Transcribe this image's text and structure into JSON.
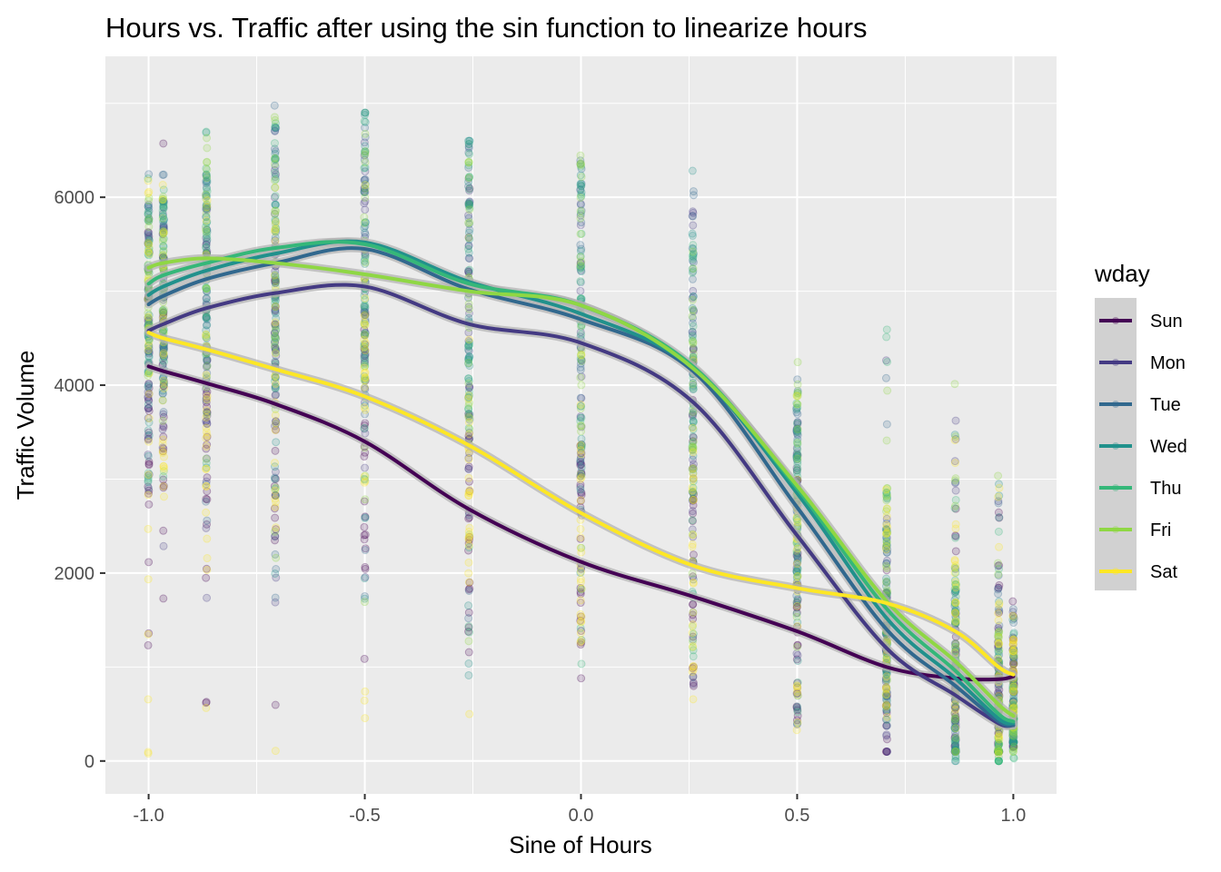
{
  "chart_data": {
    "type": "scatter",
    "title": "Hours vs. Traffic after using the sin function to linearize hours",
    "xlabel": "Sine of Hours",
    "ylabel": "Traffic Volume",
    "xlim": [
      -1.1,
      1.1
    ],
    "ylim": [
      -350,
      7500
    ],
    "x_ticks": [
      -1.0,
      -0.5,
      0.0,
      0.5,
      1.0
    ],
    "x_tick_labels": [
      "-1.0",
      "-0.5",
      "0.0",
      "0.5",
      "1.0"
    ],
    "y_ticks": [
      0,
      2000,
      4000,
      6000
    ],
    "y_tick_labels": [
      "0",
      "2000",
      "4000",
      "6000"
    ],
    "grid": true,
    "panel_background": "#ebebeb",
    "legend": {
      "title": "wday",
      "position": "right"
    },
    "x_positions": [
      -1.0,
      -0.966,
      -0.866,
      -0.707,
      -0.5,
      -0.259,
      0.0,
      0.259,
      0.5,
      0.707,
      0.866,
      0.966,
      1.0
    ],
    "series": [
      {
        "name": "Sun",
        "color": "#440154",
        "smooth": [
          4200,
          4150,
          4020,
          3800,
          3400,
          2680,
          2120,
          1750,
          1380,
          1000,
          880,
          870,
          900
        ],
        "range": [
          [
            100,
            6650
          ],
          [
            500,
            6600
          ],
          [
            450,
            6000
          ],
          [
            450,
            6300
          ],
          [
            1000,
            6200
          ],
          [
            700,
            6300
          ],
          [
            800,
            5200
          ],
          [
            750,
            4800
          ],
          [
            350,
            3800
          ],
          [
            100,
            3700
          ],
          [
            100,
            2800
          ],
          [
            150,
            2750
          ],
          [
            150,
            1800
          ]
        ]
      },
      {
        "name": "Mon",
        "color": "#443a83",
        "smooth": [
          4580,
          4650,
          4820,
          4980,
          5050,
          4650,
          4450,
          3820,
          2400,
          1200,
          700,
          400,
          380
        ],
        "range": [
          [
            1700,
            6400
          ],
          [
            1700,
            6300
          ],
          [
            1700,
            6500
          ],
          [
            1500,
            6800
          ],
          [
            1000,
            6700
          ],
          [
            700,
            6500
          ],
          [
            800,
            6700
          ],
          [
            750,
            6100
          ],
          [
            250,
            4900
          ],
          [
            100,
            4500
          ],
          [
            100,
            3700
          ],
          [
            100,
            2800
          ],
          [
            150,
            1800
          ]
        ]
      },
      {
        "name": "Tue",
        "color": "#31688e",
        "smooth": [
          4860,
          4950,
          5130,
          5300,
          5450,
          5020,
          4700,
          4150,
          2700,
          1400,
          800,
          420,
          380
        ],
        "range": [
          [
            2700,
            6500
          ],
          [
            2500,
            6300
          ],
          [
            2500,
            6600
          ],
          [
            1500,
            7100
          ],
          [
            1100,
            6900
          ],
          [
            800,
            6600
          ],
          [
            900,
            7000
          ],
          [
            800,
            6300
          ],
          [
            350,
            4300
          ],
          [
            100,
            4200
          ],
          [
            100,
            3750
          ],
          [
            100,
            3000
          ],
          [
            200,
            1700
          ]
        ]
      },
      {
        "name": "Wed",
        "color": "#21918c",
        "smooth": [
          4960,
          5050,
          5220,
          5400,
          5520,
          5100,
          4760,
          4180,
          2850,
          1520,
          880,
          450,
          400
        ],
        "range": [
          [
            2800,
            6400
          ],
          [
            2700,
            6300
          ],
          [
            2800,
            6700
          ],
          [
            1700,
            7200
          ],
          [
            1200,
            6900
          ],
          [
            900,
            6600
          ],
          [
            900,
            7200
          ],
          [
            900,
            6300
          ],
          [
            350,
            4100
          ],
          [
            100,
            4100
          ],
          [
            0,
            3500
          ],
          [
            100,
            3100
          ],
          [
            200,
            1600
          ]
        ]
      },
      {
        "name": "Thu",
        "color": "#35b779",
        "smooth": [
          5080,
          5170,
          5300,
          5460,
          5500,
          5080,
          4850,
          4200,
          2900,
          1620,
          960,
          500,
          420
        ],
        "range": [
          [
            2900,
            6500
          ],
          [
            2800,
            6300
          ],
          [
            2900,
            6750
          ],
          [
            1800,
            7250
          ],
          [
            1300,
            6900
          ],
          [
            900,
            6600
          ],
          [
            1000,
            7250
          ],
          [
            900,
            6100
          ],
          [
            300,
            4200
          ],
          [
            100,
            4800
          ],
          [
            0,
            3600
          ],
          [
            0,
            3100
          ],
          [
            0,
            1500
          ]
        ]
      },
      {
        "name": "Fri",
        "color": "#8fd744",
        "smooth": [
          5250,
          5300,
          5350,
          5300,
          5180,
          5000,
          4850,
          4180,
          2930,
          1700,
          1060,
          600,
          480
        ],
        "range": [
          [
            3000,
            6300
          ],
          [
            3000,
            6200
          ],
          [
            1200,
            6700
          ],
          [
            1500,
            7200
          ],
          [
            1400,
            6800
          ],
          [
            1000,
            6400
          ],
          [
            1000,
            7000
          ],
          [
            900,
            5900
          ],
          [
            400,
            4500
          ],
          [
            200,
            4800
          ],
          [
            100,
            4050
          ],
          [
            100,
            3300
          ],
          [
            100,
            1600
          ]
        ]
      },
      {
        "name": "Sat",
        "color": "#fde725",
        "smooth": [
          4560,
          4500,
          4380,
          4170,
          3880,
          3360,
          2640,
          2080,
          1840,
          1680,
          1380,
          1000,
          920
        ],
        "range": [
          [
            0,
            6300
          ],
          [
            0,
            6500
          ],
          [
            0,
            6400
          ],
          [
            0,
            6300
          ],
          [
            0,
            6200
          ],
          [
            0,
            5300
          ],
          [
            0,
            5200
          ],
          [
            0,
            4400
          ],
          [
            0,
            4300
          ],
          [
            0,
            4600
          ],
          [
            0,
            4050
          ],
          [
            0,
            3000
          ],
          [
            0,
            1600
          ]
        ]
      }
    ]
  }
}
